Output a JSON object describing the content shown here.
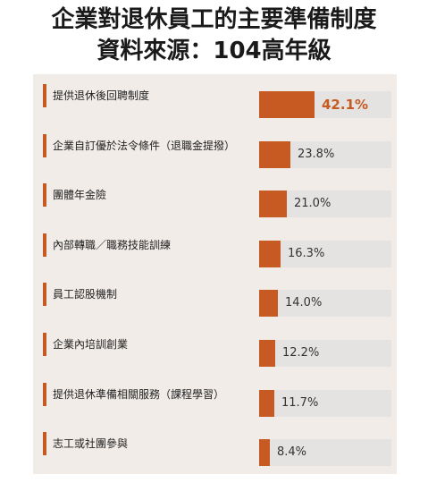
{
  "chart_data": {
    "type": "bar",
    "orientation": "horizontal",
    "title": "企業對退休員工的主要準備制度",
    "subtitle": "資料來源：104高年級",
    "unit": "%",
    "categories": [
      "提供退休後回聘制度",
      "企業自訂優於法令條件（退職金提撥）",
      "團體年金險",
      "內部轉職／職務技能訓練",
      "員工認股機制",
      "企業內培訓創業",
      "提供退休準備相關服務（課程學習）",
      "志工或社團參與"
    ],
    "values": [
      42.1,
      23.8,
      21.0,
      16.3,
      14.0,
      12.2,
      11.7,
      8.4
    ],
    "value_labels": [
      "42.1%",
      "23.8%",
      "21.0%",
      "16.3%",
      "14.0%",
      "12.2%",
      "11.7%",
      "8.4%"
    ],
    "xlim": [
      0,
      100
    ],
    "grid": false,
    "legend": "none",
    "colors": {
      "bar": "#c65a22",
      "track": "#e4e3e2",
      "panel": "#f1ece8",
      "highlight_label": "#c65a22"
    }
  }
}
